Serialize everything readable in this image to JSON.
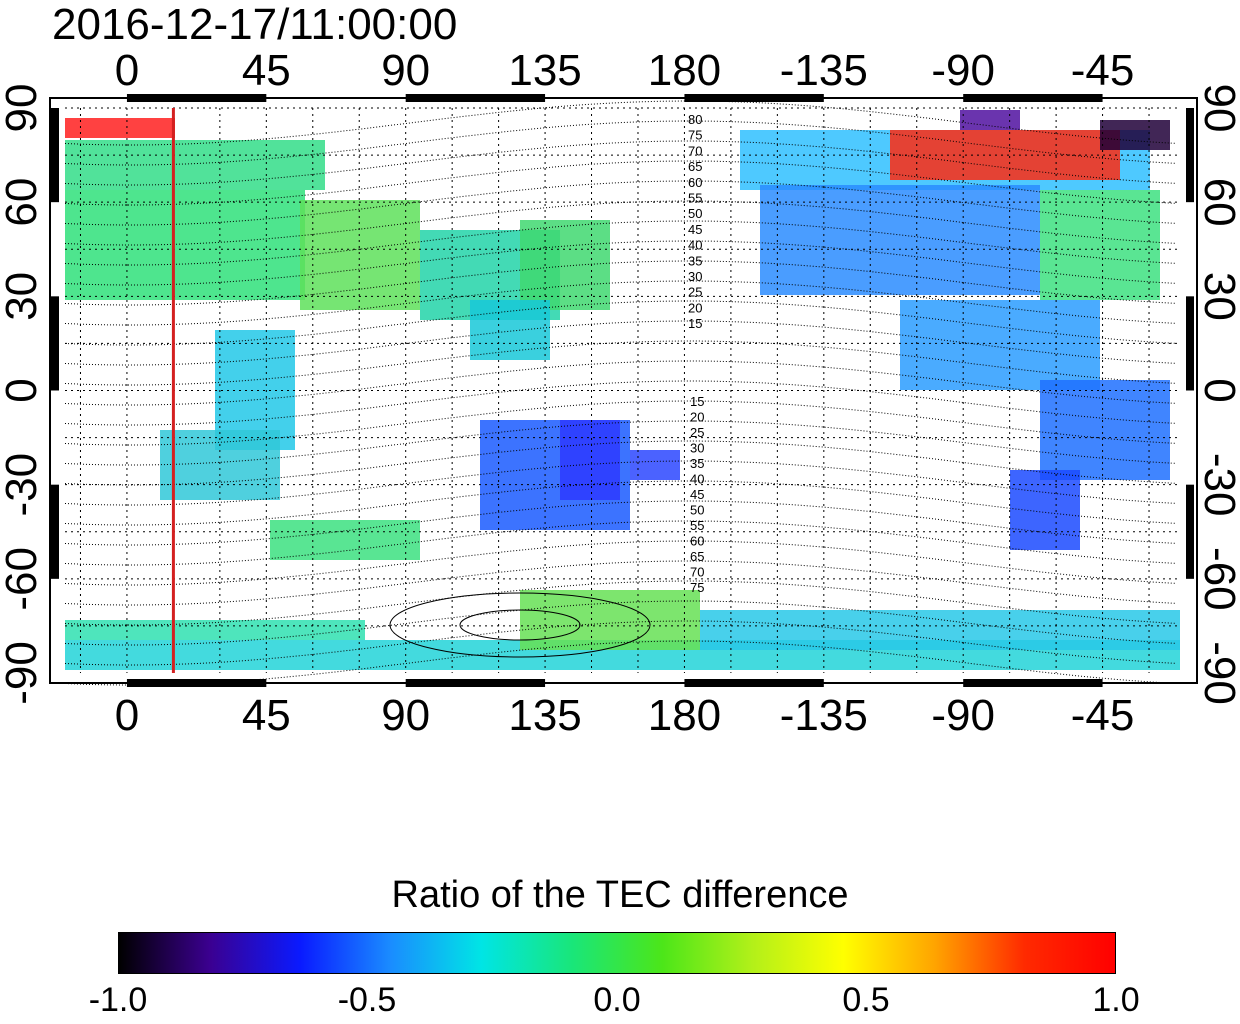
{
  "timestamp": "2016-12-17/11:00:00",
  "map": {
    "x_ticks": [
      "0",
      "45",
      "90",
      "135",
      "180",
      "-135",
      "-90",
      "-45"
    ],
    "y_ticks": [
      "90",
      "60",
      "30",
      "0",
      "-30",
      "-60",
      "-90"
    ],
    "marker_longitude": 15,
    "contour_labels_north": [
      "80",
      "75",
      "70",
      "65",
      "60",
      "55",
      "50",
      "45",
      "40",
      "35",
      "30",
      "25",
      "20",
      "15"
    ],
    "contour_labels_south": [
      "15",
      "20",
      "25",
      "30",
      "35",
      "40",
      "45",
      "50",
      "55",
      "60",
      "65",
      "70",
      "75"
    ],
    "marker_color": "#d42020"
  },
  "colorbar": {
    "title": "Ratio of the TEC difference",
    "ticks": [
      "-1.0",
      "-0.5",
      "0.0",
      "0.5",
      "1.0"
    ],
    "range": [
      -1.0,
      1.0
    ],
    "stops": [
      "#000000",
      "#3b0090",
      "#0a1aff",
      "#1a8cff",
      "#00e5e5",
      "#19e67a",
      "#4ce619",
      "#b3f019",
      "#ffff00",
      "#ffa500",
      "#ff2a00",
      "#ff0000"
    ]
  }
}
